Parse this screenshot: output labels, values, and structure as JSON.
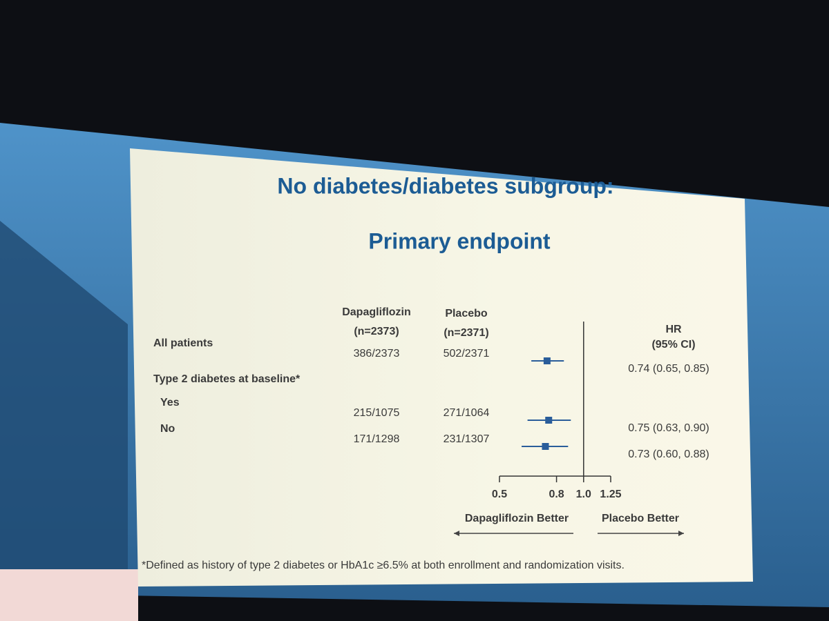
{
  "chart_data": {
    "type": "forest",
    "title": [
      "No diabetes/diabetes subgroup:",
      "Primary endpoint"
    ],
    "columns": [
      {
        "name": "Dapagliflozin",
        "subtitle": "(n=2373)"
      },
      {
        "name": "Placebo",
        "subtitle": "(n=2371)"
      }
    ],
    "effect_header": {
      "name": "HR",
      "subtitle": "(95% CI)"
    },
    "rows": [
      {
        "label": "All patients",
        "counts": [
          "386/2373",
          "502/2371"
        ],
        "estimate": 0.74,
        "ci": [
          0.65,
          0.85
        ],
        "value_label": "0.74 (0.65, 0.85)"
      },
      {
        "label": "Type 2 diabetes at baseline*"
      },
      {
        "label": "Yes",
        "counts": [
          "215/1075",
          "271/1064"
        ],
        "estimate": 0.75,
        "ci": [
          0.63,
          0.9
        ],
        "value_label": "0.75 (0.63, 0.90)"
      },
      {
        "label": "No",
        "counts": [
          "171/1298",
          "231/1307"
        ],
        "estimate": 0.73,
        "ci": [
          0.6,
          0.88
        ],
        "value_label": "0.73 (0.60, 0.88)"
      }
    ],
    "log_scale": true,
    "xlim": [
      0.5,
      1.25
    ],
    "xticks": [
      0.5,
      0.8,
      {
        "value": 1,
        "label": "1.0"
      },
      1.25
    ],
    "reference": 1,
    "direction_labels": [
      "Dapagliflozin Better",
      "Placebo Better"
    ],
    "color": "#2a5d9a",
    "footnote": "*Defined as history of type 2 diabetes or HbA1c ≥6.5% at both enrollment and randomization visits."
  }
}
